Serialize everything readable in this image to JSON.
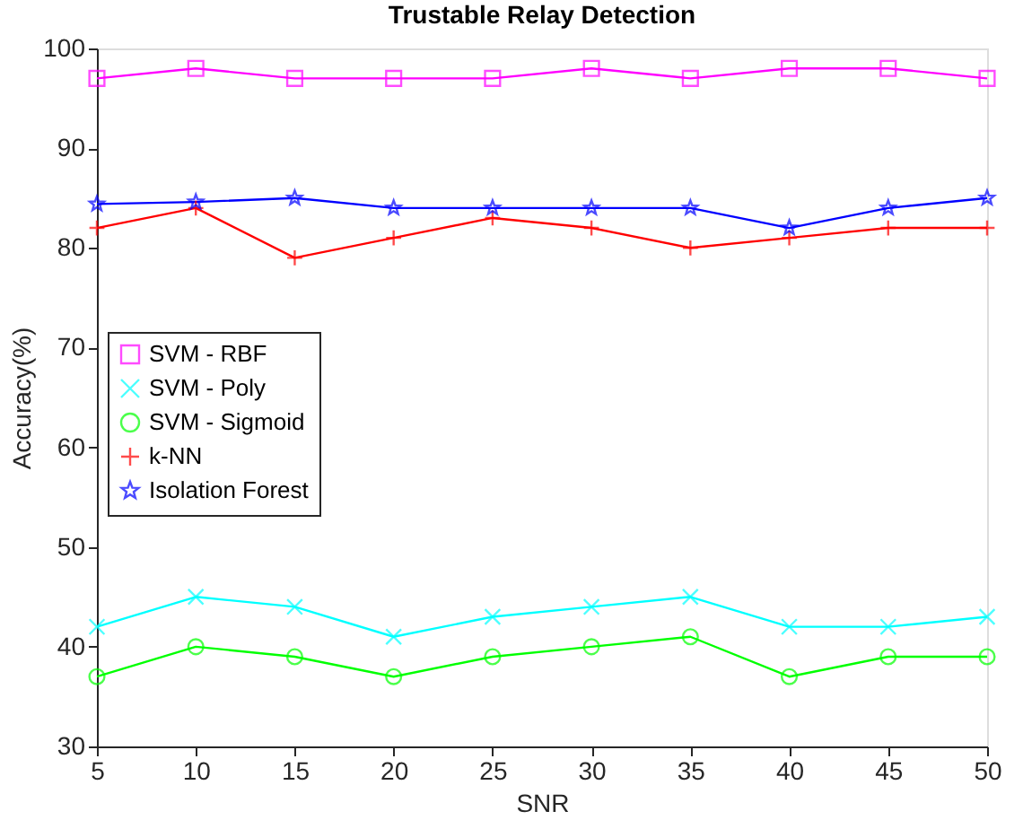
{
  "chart_data": {
    "type": "line",
    "title": "Trustable Relay Detection",
    "xlabel": "SNR",
    "ylabel": "Accuracy(%)",
    "x": [
      5,
      10,
      15,
      20,
      25,
      30,
      35,
      40,
      45,
      50
    ],
    "series": [
      {
        "name": "SVM - RBF",
        "color": "#ff00ff",
        "marker": "square",
        "values": [
          97,
          98,
          97,
          97,
          97,
          98,
          97,
          98,
          98,
          97
        ]
      },
      {
        "name": "SVM - Poly",
        "color": "#00ffff",
        "marker": "x",
        "values": [
          42,
          45,
          44,
          41,
          43,
          44,
          45,
          42,
          42,
          43
        ]
      },
      {
        "name": "SVM - Sigmoid",
        "color": "#00ff00",
        "marker": "circle",
        "values": [
          37,
          40,
          39,
          37,
          39,
          40,
          41,
          37,
          39,
          39
        ]
      },
      {
        "name": "k-NN",
        "color": "#ff0000",
        "marker": "cross",
        "values": [
          82,
          84,
          79,
          81,
          83,
          82,
          80,
          81,
          82,
          82
        ]
      },
      {
        "name": "Isolation Forest",
        "color": "#0000ff",
        "marker": "star",
        "values": [
          84.4,
          84.6,
          85,
          84,
          84,
          84,
          84,
          82,
          84,
          85
        ]
      }
    ],
    "xlim": [
      5,
      50
    ],
    "xticks": [
      5,
      10,
      15,
      20,
      25,
      30,
      35,
      40,
      45,
      50
    ],
    "ylim": [
      30,
      100
    ],
    "yticks": [
      30,
      40,
      50,
      60,
      70,
      80,
      90,
      100
    ],
    "grid": false,
    "legend": "left",
    "line_style": "solid"
  }
}
